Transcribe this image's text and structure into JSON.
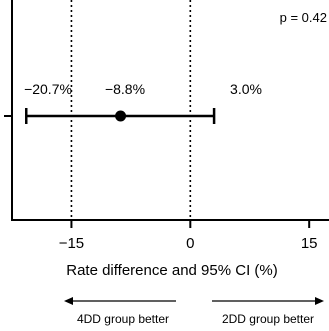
{
  "chart_data": {
    "type": "forest",
    "title": "",
    "xlabel": "Rate difference and 95% CI (%)",
    "ylabel": "",
    "xlim": [
      -22.5,
      17.5
    ],
    "xticks": [
      -15,
      0,
      15
    ],
    "xtick_labels": [
      "−15",
      "0",
      "15"
    ],
    "reference_lines": [
      -15,
      0
    ],
    "estimate": -8.8,
    "ci_lower": -20.7,
    "ci_upper": 3.0,
    "labels": {
      "lower": "−20.7%",
      "estimate": "−8.8%",
      "upper": "3.0%"
    },
    "p_value_text": "p = 0.42",
    "grid": false
  },
  "favor_labels": {
    "left": "4DD group better",
    "right": "2DD group better"
  }
}
